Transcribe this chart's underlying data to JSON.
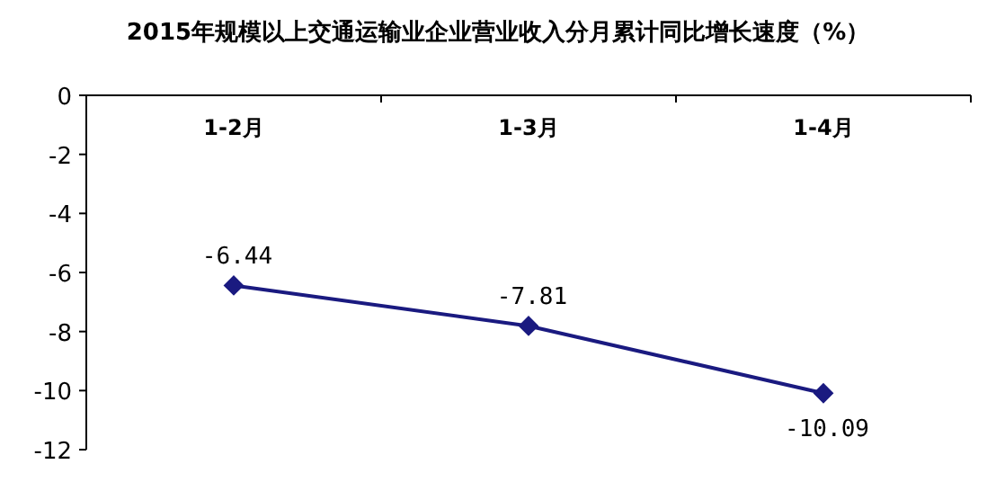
{
  "chart_data": {
    "type": "line",
    "title": "2015年规模以上交通运输业企业营业收入分月累计同比增长速度（%）",
    "categories": [
      "1-2月",
      "1-3月",
      "1-4月"
    ],
    "values": [
      -6.44,
      -7.81,
      -10.09
    ],
    "color": "#1a1a80",
    "ylim": [
      -12,
      0
    ],
    "yticks": [
      0,
      -2,
      -4,
      -6,
      -8,
      -10,
      -12
    ],
    "data_labels": true,
    "marker": "diamond",
    "line_style": "solid"
  }
}
